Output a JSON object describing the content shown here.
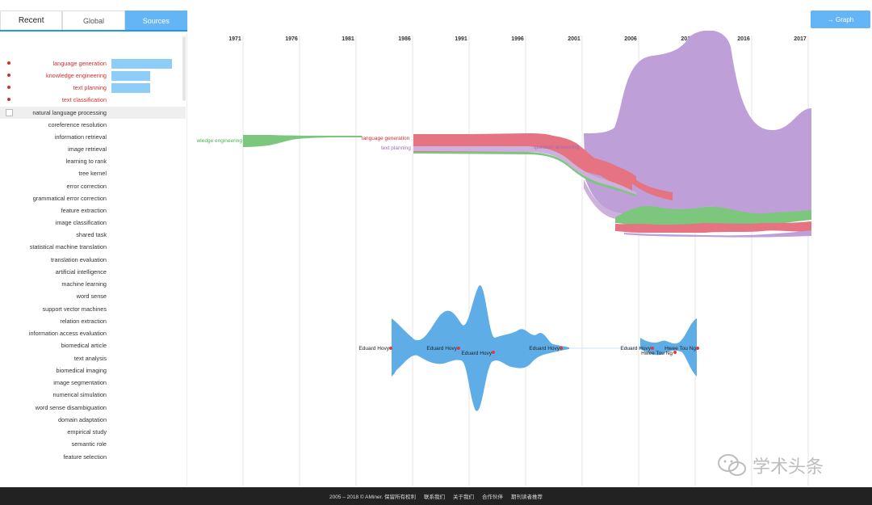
{
  "tabs": [
    {
      "label": "Recent"
    },
    {
      "label": "Global"
    },
    {
      "label": "Sources"
    }
  ],
  "graph_button": {
    "label": "→ Graph"
  },
  "topics": [
    {
      "label": "language generation",
      "selected": true,
      "bar": 0.85
    },
    {
      "label": "knowledge engineering",
      "selected": true,
      "bar": 0.55
    },
    {
      "label": "text planning",
      "selected": true,
      "bar": 0.55
    },
    {
      "label": "text classification",
      "selected": true,
      "bar": 0
    },
    {
      "label": "natural language processing",
      "highlight": true
    },
    {
      "label": "coreference resolution"
    },
    {
      "label": "information retrieval"
    },
    {
      "label": "image retrieval"
    },
    {
      "label": "learning to rank"
    },
    {
      "label": "tree kernel"
    },
    {
      "label": "error correction"
    },
    {
      "label": "grammatical error correction"
    },
    {
      "label": "feature extraction"
    },
    {
      "label": "image classification"
    },
    {
      "label": "shared task"
    },
    {
      "label": "statistical machine translation"
    },
    {
      "label": "translation evaluation"
    },
    {
      "label": "artificial intelligence"
    },
    {
      "label": "machine learning"
    },
    {
      "label": "word sense"
    },
    {
      "label": "support vector machines"
    },
    {
      "label": "relation extraction"
    },
    {
      "label": "information access evaluation"
    },
    {
      "label": "biomedical article"
    },
    {
      "label": "text analysis"
    },
    {
      "label": "biomedical imaging"
    },
    {
      "label": "image segmentation"
    },
    {
      "label": "numerical simulation"
    },
    {
      "label": "word sense disambiguation"
    },
    {
      "label": "domain adaptation"
    },
    {
      "label": "empirical study"
    },
    {
      "label": "semantic role"
    },
    {
      "label": "feature selection"
    }
  ],
  "chart_data": {
    "type": "area",
    "x_ticks": [
      "1971",
      "1976",
      "1981",
      "1986",
      "1991",
      "1996",
      "2001",
      "2006",
      "2011",
      "2016",
      "2017"
    ],
    "stream_labels": [
      "wledge engineering",
      "language generation",
      "text planning",
      "question answering"
    ],
    "people_labels": [
      "Eduard Hovy",
      "Eduard Hovy",
      "Eduard Hovy",
      "Eduard Hovy",
      "Eduard Hovy",
      "Hwee Tou Ng",
      "Hwee Tou Ng"
    ],
    "colors": {
      "green": "#7dc67e",
      "red": "#e57382",
      "light_purple": "#cbb1dc",
      "purple": "#bf9fd8",
      "blue": "#5fade7"
    }
  },
  "footer": {
    "copyright": "2005 – 2018 © AMiner. 保留所有权利",
    "links": [
      "联系我们",
      "关于我们",
      "合作伙伴",
      "期刊读者推荐"
    ]
  },
  "watermark": {
    "text": "学术头条"
  }
}
